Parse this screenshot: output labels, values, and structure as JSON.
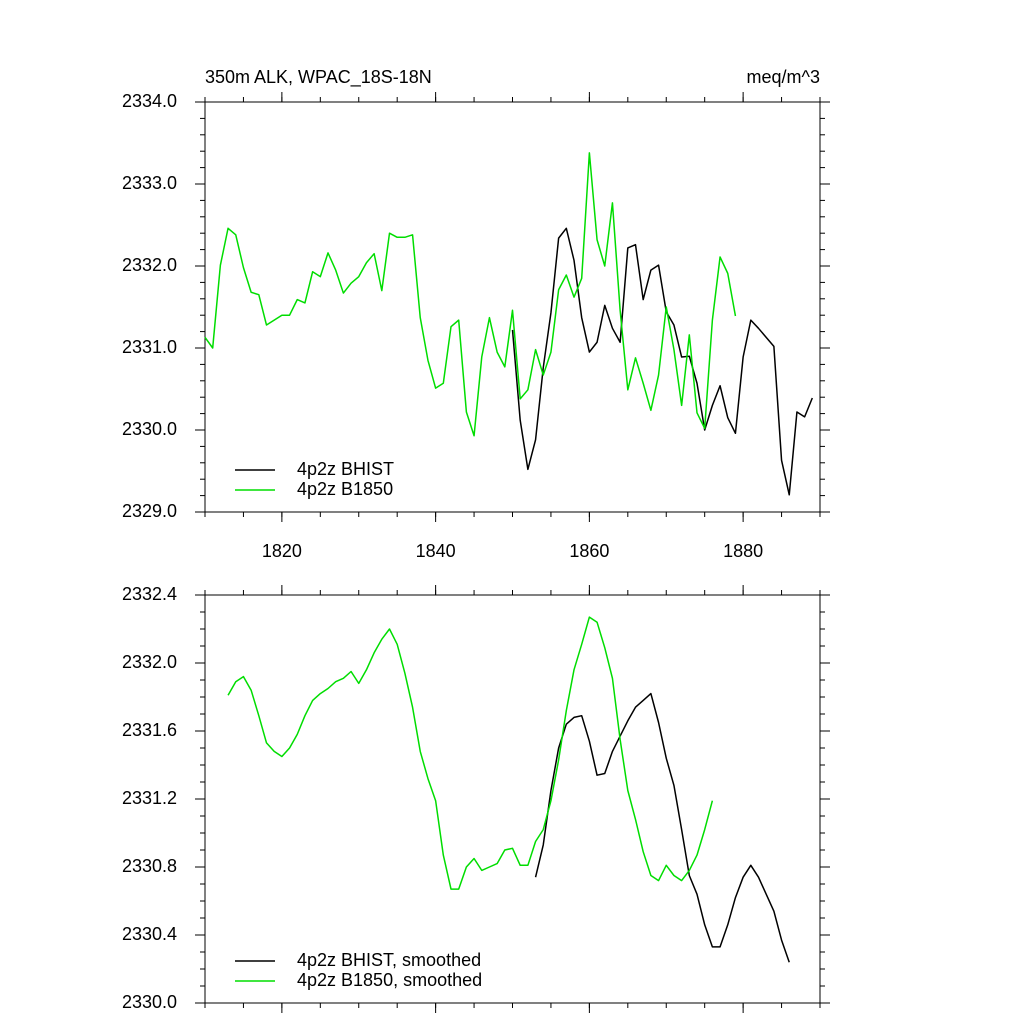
{
  "chart_data": [
    {
      "type": "line",
      "title": "350m ALK, WPAC_18S-18N",
      "units": "meq/m^3",
      "x": [
        1810,
        1811,
        1812,
        1813,
        1814,
        1815,
        1816,
        1817,
        1818,
        1819,
        1820,
        1821,
        1822,
        1823,
        1824,
        1825,
        1826,
        1827,
        1828,
        1829,
        1830,
        1831,
        1832,
        1833,
        1834,
        1835,
        1836,
        1837,
        1838,
        1839,
        1840,
        1841,
        1842,
        1843,
        1844,
        1845,
        1846,
        1847,
        1848,
        1849,
        1850,
        1851,
        1852,
        1853,
        1854,
        1855,
        1856,
        1857,
        1858,
        1859,
        1860,
        1861,
        1862,
        1863,
        1864,
        1865,
        1866,
        1867,
        1868,
        1869,
        1870,
        1871,
        1872,
        1873,
        1874,
        1875,
        1876,
        1877,
        1878,
        1879,
        1880,
        1881,
        1882,
        1883,
        1884,
        1885,
        1886,
        1887,
        1888,
        1889
      ],
      "series": [
        {
          "name": "4p2z BHIST",
          "color": "#000000",
          "values": [
            null,
            null,
            null,
            null,
            null,
            null,
            null,
            null,
            null,
            null,
            null,
            null,
            null,
            null,
            null,
            null,
            null,
            null,
            null,
            null,
            null,
            null,
            null,
            null,
            null,
            null,
            null,
            null,
            null,
            null,
            null,
            null,
            null,
            null,
            null,
            null,
            null,
            null,
            null,
            null,
            2331.22,
            2330.12,
            2329.52,
            2329.88,
            2330.76,
            2331.43,
            2332.34,
            2332.46,
            2332.07,
            2331.37,
            2330.95,
            2331.07,
            2331.52,
            2331.24,
            2331.07,
            2332.22,
            2332.26,
            2331.59,
            2331.95,
            2332.01,
            2331.44,
            2331.28,
            2330.89,
            2330.9,
            2330.57,
            2330.0,
            2330.3,
            2330.54,
            2330.15,
            2329.96,
            2330.89,
            2331.34,
            2331.24,
            2331.13,
            2331.02,
            2329.63,
            2329.21,
            2330.22,
            2330.16,
            2330.39
          ]
        },
        {
          "name": "4p2z B1850",
          "color": "#00dd00",
          "values": [
            2331.13,
            2331.0,
            2332.01,
            2332.46,
            2332.38,
            2331.98,
            2331.68,
            2331.65,
            2331.28,
            2331.34,
            2331.4,
            2331.4,
            2331.59,
            2331.55,
            2331.93,
            2331.87,
            2332.16,
            2331.95,
            2331.67,
            2331.79,
            2331.87,
            2332.04,
            2332.15,
            2331.7,
            2332.4,
            2332.35,
            2332.35,
            2332.38,
            2331.37,
            2330.85,
            2330.51,
            2330.57,
            2331.26,
            2331.34,
            2330.22,
            2329.93,
            2330.89,
            2331.37,
            2330.95,
            2330.77,
            2331.46,
            2330.38,
            2330.49,
            2330.98,
            2330.67,
            2330.95,
            2331.71,
            2331.89,
            2331.62,
            2331.85,
            2333.38,
            2332.32,
            2332.0,
            2332.77,
            2331.46,
            2330.49,
            2330.88,
            2330.57,
            2330.24,
            2330.67,
            2331.5,
            2330.98,
            2330.3,
            2331.16,
            2330.21,
            2330.02,
            2331.34,
            2332.11,
            2331.91,
            2331.39,
            null,
            null,
            null,
            null,
            null,
            null,
            null,
            null,
            null,
            null
          ]
        }
      ],
      "xlim": [
        1810,
        1890
      ],
      "xticks": [
        1820,
        1840,
        1860,
        1880
      ],
      "ylim": [
        2329,
        2334
      ],
      "yticks": [
        {
          "value": 2329,
          "label": "2329.0"
        },
        {
          "value": 2330,
          "label": "2330.0"
        },
        {
          "value": 2331,
          "label": "2331.0"
        },
        {
          "value": 2332,
          "label": "2332.0"
        },
        {
          "value": 2333,
          "label": "2333.0"
        },
        {
          "value": 2334,
          "label": "2334.0"
        }
      ],
      "legend": "lower left"
    },
    {
      "type": "line",
      "x": [
        1813,
        1814,
        1815,
        1816,
        1817,
        1818,
        1819,
        1820,
        1821,
        1822,
        1823,
        1824,
        1825,
        1826,
        1827,
        1828,
        1829,
        1830,
        1831,
        1832,
        1833,
        1834,
        1835,
        1836,
        1837,
        1838,
        1839,
        1840,
        1841,
        1842,
        1843,
        1844,
        1845,
        1846,
        1847,
        1848,
        1849,
        1850,
        1851,
        1852,
        1853,
        1854,
        1855,
        1856,
        1857,
        1858,
        1859,
        1860,
        1861,
        1862,
        1863,
        1864,
        1865,
        1866,
        1867,
        1868,
        1869,
        1870,
        1871,
        1872,
        1873,
        1874,
        1875,
        1876,
        1877,
        1878,
        1879,
        1880,
        1881,
        1882,
        1883,
        1884,
        1885,
        1886
      ],
      "series": [
        {
          "name": "4p2z BHIST, smoothed",
          "color": "#000000",
          "values": [
            null,
            null,
            null,
            null,
            null,
            null,
            null,
            null,
            null,
            null,
            null,
            null,
            null,
            null,
            null,
            null,
            null,
            null,
            null,
            null,
            null,
            null,
            null,
            null,
            null,
            null,
            null,
            null,
            null,
            null,
            null,
            null,
            null,
            null,
            null,
            null,
            null,
            null,
            null,
            null,
            2330.74,
            2330.93,
            2331.25,
            2331.5,
            2331.64,
            2331.68,
            2331.69,
            2331.54,
            2331.34,
            2331.35,
            2331.48,
            2331.57,
            2331.66,
            2331.74,
            2331.78,
            2331.82,
            2331.65,
            2331.44,
            2331.28,
            2331.02,
            2330.75,
            2330.64,
            2330.46,
            2330.33,
            2330.33,
            2330.46,
            2330.62,
            2330.74,
            2330.81,
            2330.74,
            2330.64,
            2330.54,
            2330.37,
            2330.24
          ]
        },
        {
          "name": "4p2z B1850, smoothed",
          "color": "#00dd00",
          "values": [
            2331.81,
            2331.89,
            2331.92,
            2331.84,
            2331.69,
            2331.53,
            2331.48,
            2331.45,
            2331.5,
            2331.58,
            2331.69,
            2331.78,
            2331.82,
            2331.85,
            2331.89,
            2331.91,
            2331.95,
            2331.88,
            2331.96,
            2332.06,
            2332.14,
            2332.2,
            2332.11,
            2331.94,
            2331.74,
            2331.48,
            2331.32,
            2331.19,
            2330.87,
            2330.67,
            2330.67,
            2330.8,
            2330.85,
            2330.78,
            2330.8,
            2330.82,
            2330.9,
            2330.91,
            2330.81,
            2330.81,
            2330.95,
            2331.02,
            2331.19,
            2331.43,
            2331.72,
            2331.96,
            2332.11,
            2332.27,
            2332.24,
            2332.09,
            2331.91,
            2331.55,
            2331.25,
            2331.08,
            2330.89,
            2330.75,
            2330.72,
            2330.81,
            2330.75,
            2330.72,
            2330.78,
            2330.87,
            2331.02,
            2331.19,
            null,
            null,
            null,
            null,
            null,
            null,
            null,
            null,
            null,
            null
          ]
        }
      ],
      "xlim": [
        1810,
        1890
      ],
      "ylim": [
        2330,
        2332.4
      ],
      "yticks": [
        {
          "value": 2330,
          "label": "2330.0"
        },
        2330.4,
        2330.8,
        2331.2,
        2331.6,
        {
          "value": 2332,
          "label": "2332.0"
        },
        2332.4
      ],
      "legend": "lower left"
    }
  ]
}
